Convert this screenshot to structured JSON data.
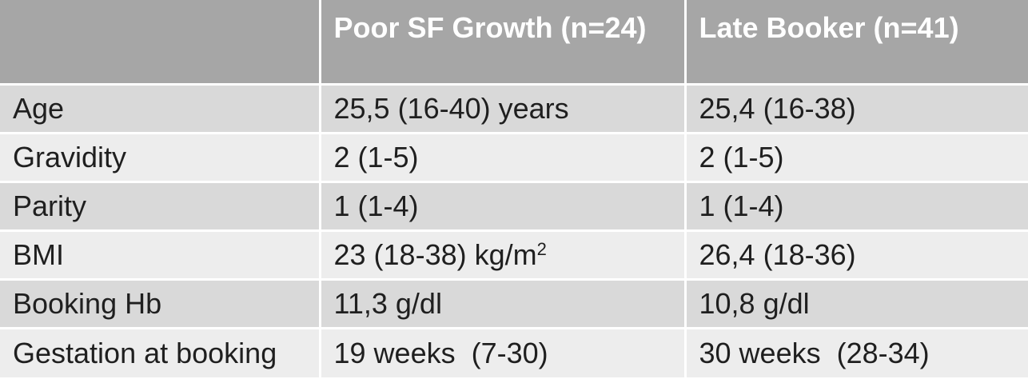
{
  "columns": [
    "",
    "Poor SF Growth (n=24)",
    "Late Booker (n=41)"
  ],
  "rows": [
    {
      "label": "Age",
      "poor_sf": "25,5 (16-40) years",
      "late_booker": "25,4 (16-38)"
    },
    {
      "label": "Gravidity",
      "poor_sf": "2 (1-5)",
      "late_booker": "2 (1-5)"
    },
    {
      "label": "Parity",
      "poor_sf": "1 (1-4)",
      "late_booker": "1 (1-4)"
    },
    {
      "label": "BMI",
      "poor_sf": "23 (18-38) kg/m",
      "poor_sf_sup": "2",
      "late_booker": "26,4 (18-36)"
    },
    {
      "label": "Booking Hb",
      "poor_sf": "11,3 g/dl",
      "late_booker": "10,8 g/dl"
    },
    {
      "label": "Gestation at booking",
      "poor_sf": "19 weeks  (7-30)",
      "late_booker": "30 weeks  (28-34)"
    }
  ]
}
